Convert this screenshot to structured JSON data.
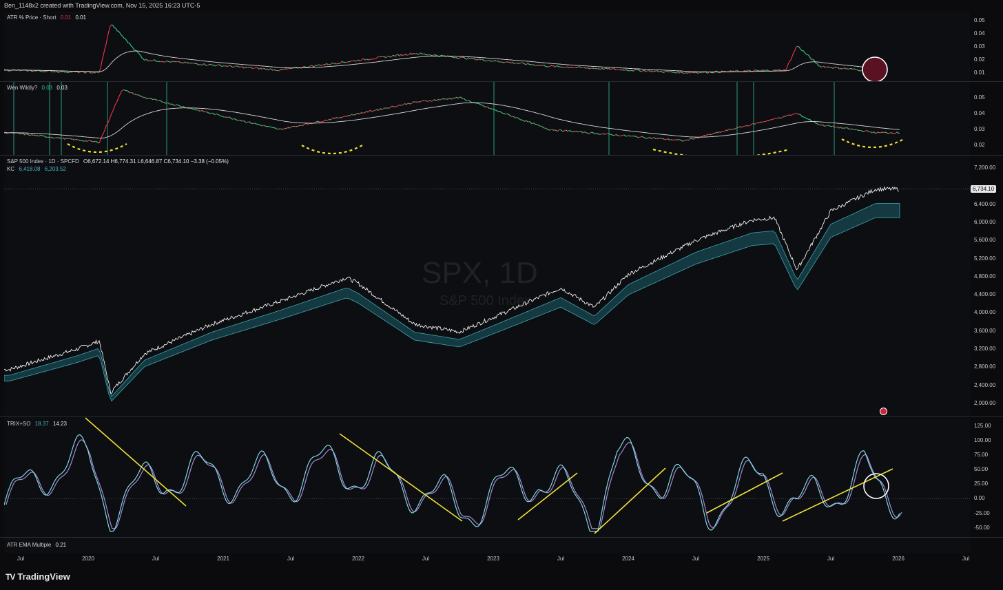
{
  "header": {
    "credit": "Ben_1148x2 created with TradingView.com, Nov 15, 2025 16:23 UTC-5"
  },
  "panes": {
    "atr": {
      "name": "ATR % Price · Short",
      "v1": "0.01",
      "v2": "0.01",
      "ticks": [
        "0.05",
        "0.04",
        "0.03",
        "0.02",
        "0.01"
      ]
    },
    "wen": {
      "name": "Wen Wildly?",
      "v1": "0.03",
      "v2": "0.03",
      "ticks": [
        "0.05",
        "0.04",
        "0.03",
        "0.02"
      ]
    },
    "spx": {
      "name": "S&P 500 Index · 1D · SPCFD",
      "ohlc": "O6,672.14 H6,774.31 L6,646.87 C6,734.10 −3.38 (−0.05%)",
      "kc_label": "KC",
      "kc1": "6,418.08",
      "kc2": "6,203.52",
      "price_tag": "6,734.10",
      "watermark": "SPX, 1D",
      "watermark_sub": "S&P 500 Index",
      "ticks": [
        "7,200.00",
        "6,400.00",
        "6,000.00",
        "5,600.00",
        "5,200.00",
        "4,800.00",
        "4,400.00",
        "4,000.00",
        "3,600.00",
        "3,200.00",
        "2,800.00",
        "2,400.00",
        "2,000.00"
      ]
    },
    "trix": {
      "name": "TRIX+SO",
      "v1": "18.37",
      "v2": "14.23",
      "ticks": [
        "125.00",
        "100.00",
        "75.00",
        "50.00",
        "25.00",
        "0.00",
        "-25.00",
        "-50.00"
      ]
    },
    "atrema": {
      "name": "ATR EMA Multiple",
      "v1": "0.21"
    }
  },
  "xaxis": {
    "labels": [
      "Jul",
      "2020",
      "Jul",
      "2021",
      "Jul",
      "2022",
      "Jul",
      "2023",
      "Jul",
      "2024",
      "Jul",
      "2025",
      "Jul",
      "2026",
      "Jul"
    ]
  },
  "footer": {
    "brand": "TradingView",
    "mark": "TV"
  },
  "colors": {
    "bg": "#0d0e11",
    "up": "#e0334a",
    "down": "#33c27a",
    "kc": "#1e6f7a",
    "trix": "#7fd6e0",
    "so": "#a58bd8",
    "annot": "#f2e13a"
  },
  "chart_data": [
    {
      "type": "line",
      "name": "SPX",
      "x": [
        "2019-06",
        "2019-12",
        "2020-02",
        "2020-03",
        "2020-06",
        "2020-12",
        "2021-06",
        "2021-12",
        "2022-01",
        "2022-06",
        "2022-10",
        "2023-01",
        "2023-07",
        "2023-10",
        "2024-01",
        "2024-07",
        "2024-12",
        "2025-02",
        "2025-04",
        "2025-07",
        "2025-11"
      ],
      "values": [
        2750,
        3200,
        3380,
        2240,
        3100,
        3750,
        4250,
        4780,
        4650,
        3750,
        3580,
        3900,
        4550,
        4120,
        4850,
        5600,
        6050,
        6100,
        4950,
        6250,
        6734
      ],
      "ylim": [
        2000,
        7200
      ]
    },
    {
      "type": "line",
      "name": "TRIX+SO",
      "x": [
        "2019-06",
        "2019-09",
        "2020-01",
        "2020-03",
        "2020-08",
        "2021-06",
        "2021-11",
        "2022-06",
        "2022-10",
        "2023-05",
        "2023-10",
        "2023-12",
        "2024-05",
        "2024-08",
        "2025-01",
        "2025-04",
        "2025-10",
        "2025-11"
      ],
      "values": [
        -20,
        90,
        120,
        -25,
        80,
        60,
        105,
        40,
        -35,
        75,
        -50,
        120,
        60,
        -30,
        80,
        -30,
        85,
        18
      ],
      "ylim": [
        -60,
        130
      ]
    },
    {
      "type": "line",
      "name": "ATR % Price",
      "x": [
        "2019-06",
        "2020-02",
        "2020-03",
        "2020-06",
        "2021-06",
        "2022-06",
        "2023-06",
        "2024-06",
        "2025-03",
        "2025-04",
        "2025-06",
        "2025-11"
      ],
      "values": [
        0.012,
        0.01,
        0.048,
        0.02,
        0.012,
        0.025,
        0.015,
        0.01,
        0.012,
        0.031,
        0.015,
        0.011
      ],
      "ylim": [
        0.005,
        0.055
      ]
    },
    {
      "type": "line",
      "name": "Wen Wildly?",
      "x": [
        "2019-06",
        "2020-02",
        "2020-04",
        "2020-06",
        "2021-06",
        "2022-06",
        "2022-10",
        "2023-06",
        "2024-06",
        "2025-04",
        "2025-06",
        "2025-11"
      ],
      "values": [
        0.028,
        0.022,
        0.055,
        0.05,
        0.03,
        0.047,
        0.05,
        0.03,
        0.023,
        0.04,
        0.033,
        0.028
      ],
      "ylim": [
        0.015,
        0.058
      ]
    }
  ]
}
